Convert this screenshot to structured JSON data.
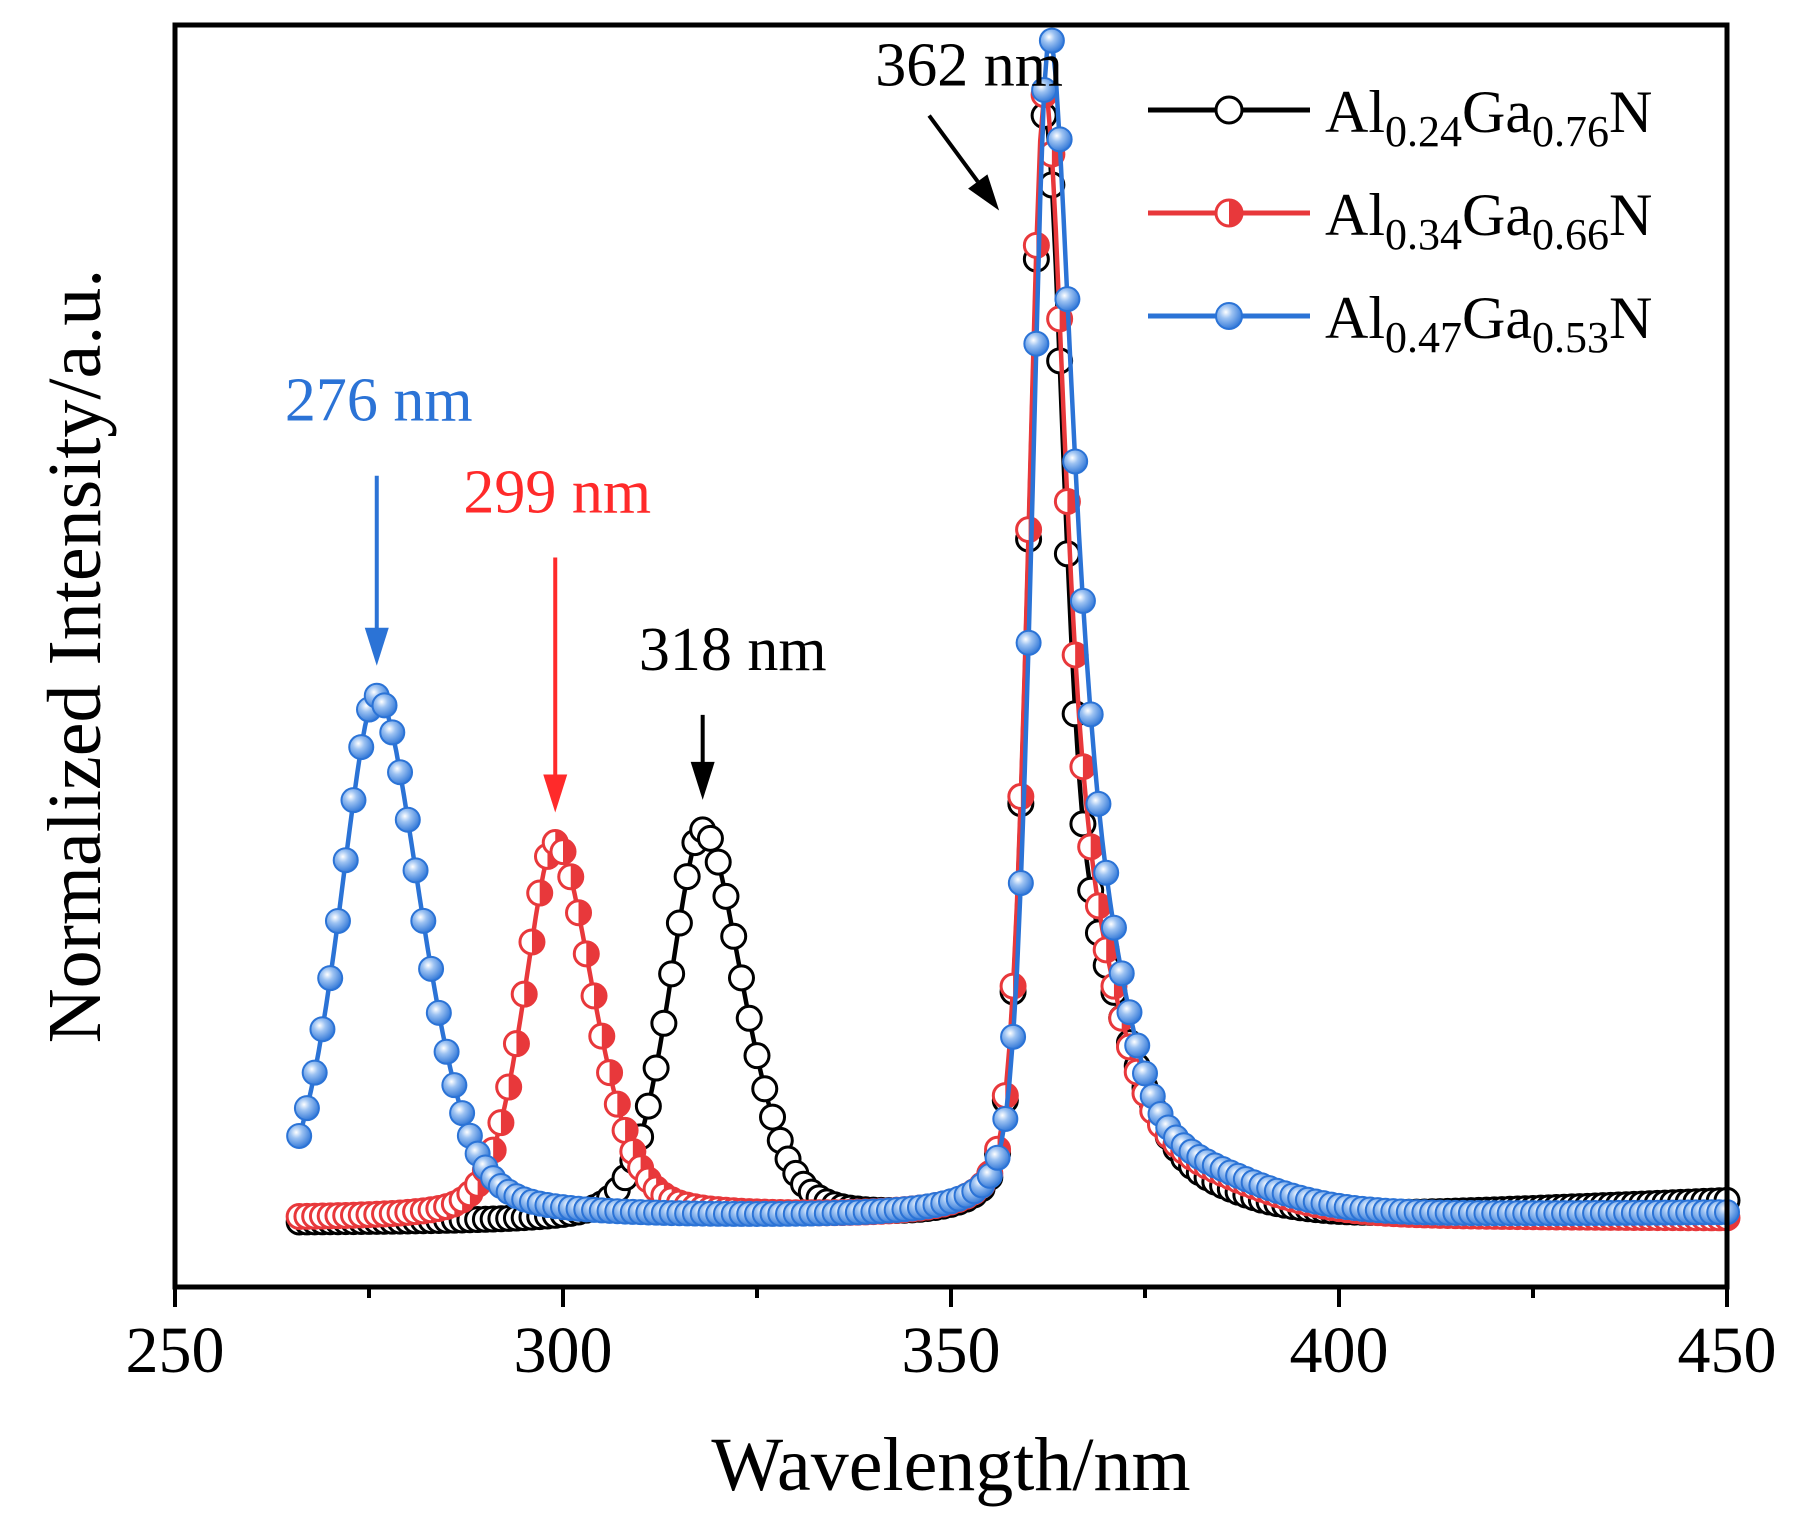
{
  "chart_data": {
    "type": "line",
    "title": "",
    "xlabel": "Wavelength/nm",
    "ylabel": "Normalized Intensity/a.u.",
    "xlim": [
      250,
      450
    ],
    "ylim": [
      0,
      1.05
    ],
    "x_ticks": [
      "250",
      "300",
      "350",
      "400",
      "450"
    ],
    "legend_position": "top-right",
    "series": [
      {
        "name": "Al0.24Ga0.76N",
        "label_parts": [
          [
            "Al",
            ""
          ],
          [
            "0.24",
            "sub"
          ],
          [
            "Ga",
            ""
          ],
          [
            "0.76",
            "sub"
          ],
          [
            "N",
            ""
          ]
        ],
        "color": "#000000",
        "marker": "open-circle",
        "peaks": [
          {
            "center": 318,
            "amp": 0.36,
            "w1": 4.5,
            "w2": 5.5
          },
          {
            "center": 362,
            "amp": 0.985,
            "w1": 2.2,
            "w2": 2.8
          },
          {
            "center": 369,
            "amp": 0.18,
            "w1": 3.5,
            "w2": 5
          },
          {
            "center": 378,
            "amp": 0.03,
            "w1": 6,
            "w2": 10
          }
        ],
        "baseline": 0.008,
        "tail": 0.02,
        "x_range": [
          266,
          450
        ]
      },
      {
        "name": "Al0.34Ga0.66N",
        "label_parts": [
          [
            "Al",
            ""
          ],
          [
            "0.34",
            "sub"
          ],
          [
            "Ga",
            ""
          ],
          [
            "0.66",
            "sub"
          ],
          [
            "N",
            ""
          ]
        ],
        "color": "#e8383b",
        "marker": "half-circle",
        "peaks": [
          {
            "center": 299,
            "amp": 0.345,
            "w1": 4.2,
            "w2": 5.2
          },
          {
            "center": 362,
            "amp": 0.98,
            "w1": 2.2,
            "w2": 2.8
          },
          {
            "center": 368,
            "amp": 0.21,
            "w1": 3.5,
            "w2": 5
          },
          {
            "center": 380,
            "amp": 0.035,
            "w1": 6,
            "w2": 10
          }
        ],
        "baseline": 0.012,
        "tail": 0.0,
        "x_range": [
          266,
          450
        ]
      },
      {
        "name": "Al0.47Ga0.53N",
        "label_parts": [
          [
            "Al",
            ""
          ],
          [
            "0.47",
            "sub"
          ],
          [
            "Ga",
            ""
          ],
          [
            "0.53",
            "sub"
          ],
          [
            "N",
            ""
          ]
        ],
        "color": "#2b73d6",
        "marker": "filled-circle",
        "peaks": [
          {
            "center": 276,
            "amp": 0.48,
            "w1": 5,
            "w2": 6
          },
          {
            "center": 362.5,
            "amp": 0.985,
            "w1": 2.2,
            "w2": 3
          },
          {
            "center": 368,
            "amp": 0.26,
            "w1": 4,
            "w2": 5
          },
          {
            "center": 381,
            "amp": 0.035,
            "w1": 6,
            "w2": 10
          }
        ],
        "baseline": 0.012,
        "tail": 0.005,
        "x_range": [
          266,
          450
        ]
      }
    ],
    "annotations": [
      {
        "text": "276 nm",
        "peak_x": 276,
        "color": "#2b73d6",
        "arrow": "vertical"
      },
      {
        "text": "299 nm",
        "peak_x": 299,
        "color": "#ff2a2a",
        "arrow": "vertical"
      },
      {
        "text": "318 nm",
        "peak_x": 318,
        "color": "#000000",
        "arrow": "vertical"
      },
      {
        "text": "362 nm",
        "peak_x": 362,
        "color": "#000000",
        "arrow": "diagonal"
      }
    ]
  }
}
